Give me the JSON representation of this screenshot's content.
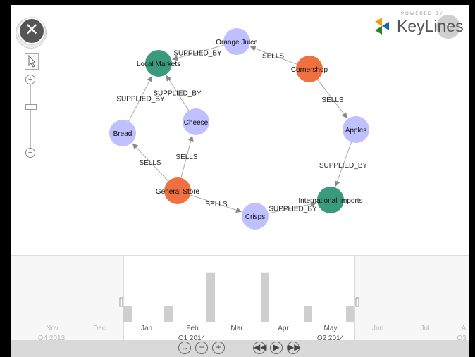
{
  "logo": {
    "powered_by": "POWERED BY",
    "name": "KeyLines"
  },
  "buttons": {
    "close": "✕",
    "next": "›",
    "zoom_in": "+",
    "zoom_out": "−"
  },
  "graph": {
    "nodes": [
      {
        "id": "oj",
        "label": "Orange Juice",
        "color": "#bfc0ff"
      },
      {
        "id": "lm",
        "label": "Local Markets",
        "color": "#3a9a7d"
      },
      {
        "id": "cs",
        "label": "Cornershop",
        "color": "#f07040"
      },
      {
        "id": "br",
        "label": "Bread",
        "color": "#bfc0ff"
      },
      {
        "id": "ch",
        "label": "Cheese",
        "color": "#bfc0ff"
      },
      {
        "id": "ap",
        "label": "Apples",
        "color": "#bfc0ff"
      },
      {
        "id": "gs",
        "label": "General Store",
        "color": "#f07040"
      },
      {
        "id": "ii",
        "label": "International Imports",
        "color": "#3a9a7d"
      },
      {
        "id": "cr",
        "label": "Crisps",
        "color": "#bfc0ff"
      }
    ],
    "edges": [
      {
        "from": "oj",
        "to": "lm",
        "label": "SUPPLIED_BY"
      },
      {
        "from": "cs",
        "to": "oj",
        "label": "SELLS"
      },
      {
        "from": "cs",
        "to": "ap",
        "label": "SELLS"
      },
      {
        "from": "br",
        "to": "lm",
        "label": "SUPPLIED_BY"
      },
      {
        "from": "ch",
        "to": "lm",
        "label": "SUPPLIED_BY"
      },
      {
        "from": "gs",
        "to": "br",
        "label": "SELLS"
      },
      {
        "from": "gs",
        "to": "ch",
        "label": "SELLS"
      },
      {
        "from": "gs",
        "to": "cr",
        "label": "SELLS"
      },
      {
        "from": "cr",
        "to": "ii",
        "label": "SUPPLIED_BY"
      },
      {
        "from": "ap",
        "to": "ii",
        "label": "SUPPLIED_BY"
      }
    ]
  },
  "timeline": {
    "months": [
      "Nov",
      "Dec",
      "Jan",
      "Feb",
      "Mar",
      "Apr",
      "May",
      "Jun",
      "Jul",
      "A"
    ],
    "quarters": [
      "Q4 2013",
      "Q1 2014",
      "Q2 2014",
      "Q3"
    ],
    "bar_heights_relative": [
      0.3,
      0.3,
      0.95,
      0.95,
      0.3,
      0.3
    ]
  }
}
